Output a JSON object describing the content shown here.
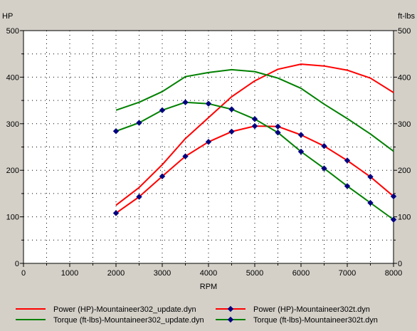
{
  "chart_data": {
    "type": "line",
    "xlabel": "RPM",
    "ylabel_left": "HP",
    "ylabel_right": "ft-lbs",
    "xlim": [
      0,
      8000
    ],
    "ylim": [
      0,
      500
    ],
    "x_ticks": [
      0,
      1000,
      2000,
      3000,
      4000,
      5000,
      6000,
      7000,
      8000
    ],
    "y_ticks": [
      0,
      100,
      200,
      300,
      400,
      500
    ],
    "grid": true,
    "legend_position": "bottom",
    "colors": {
      "background": "#d4d0c8",
      "plot_background": "#ffffff",
      "marker": "#000080"
    },
    "series": [
      {
        "name": "Power (HP)-Mountaineer302_update.dyn",
        "color": "#ff0000",
        "markers": false,
        "x": [
          2000,
          2500,
          3000,
          3500,
          4000,
          4500,
          5000,
          5500,
          6000,
          6500,
          7000,
          7500,
          8000
        ],
        "values": [
          125,
          163,
          212,
          268,
          313,
          358,
          392,
          417,
          428,
          424,
          415,
          398,
          367
        ]
      },
      {
        "name": "Torque (ft-lbs)-Mountaineer302_update.dyn",
        "color": "#008000",
        "markers": false,
        "x": [
          2000,
          2500,
          3000,
          3500,
          4000,
          4500,
          5000,
          5500,
          6000,
          6500,
          7000,
          7500,
          8000
        ],
        "values": [
          329,
          346,
          369,
          401,
          410,
          416,
          412,
          398,
          376,
          342,
          311,
          278,
          241
        ]
      },
      {
        "name": "Power (HP)-Mountaineer302t.dyn",
        "color": "#ff0000",
        "markers": true,
        "x": [
          2000,
          2500,
          3000,
          3500,
          4000,
          4500,
          5000,
          5500,
          6000,
          6500,
          7000,
          7500,
          8000
        ],
        "values": [
          108,
          143,
          187,
          230,
          261,
          283,
          295,
          294,
          276,
          252,
          221,
          186,
          144
        ]
      },
      {
        "name": "Torque (ft-lbs)-Mountaineer302t.dyn",
        "color": "#008000",
        "markers": true,
        "x": [
          2000,
          2500,
          3000,
          3500,
          4000,
          4500,
          5000,
          5500,
          6000,
          6500,
          7000,
          7500,
          8000
        ],
        "values": [
          284,
          302,
          329,
          346,
          343,
          331,
          310,
          281,
          240,
          204,
          166,
          130,
          94
        ]
      }
    ]
  }
}
